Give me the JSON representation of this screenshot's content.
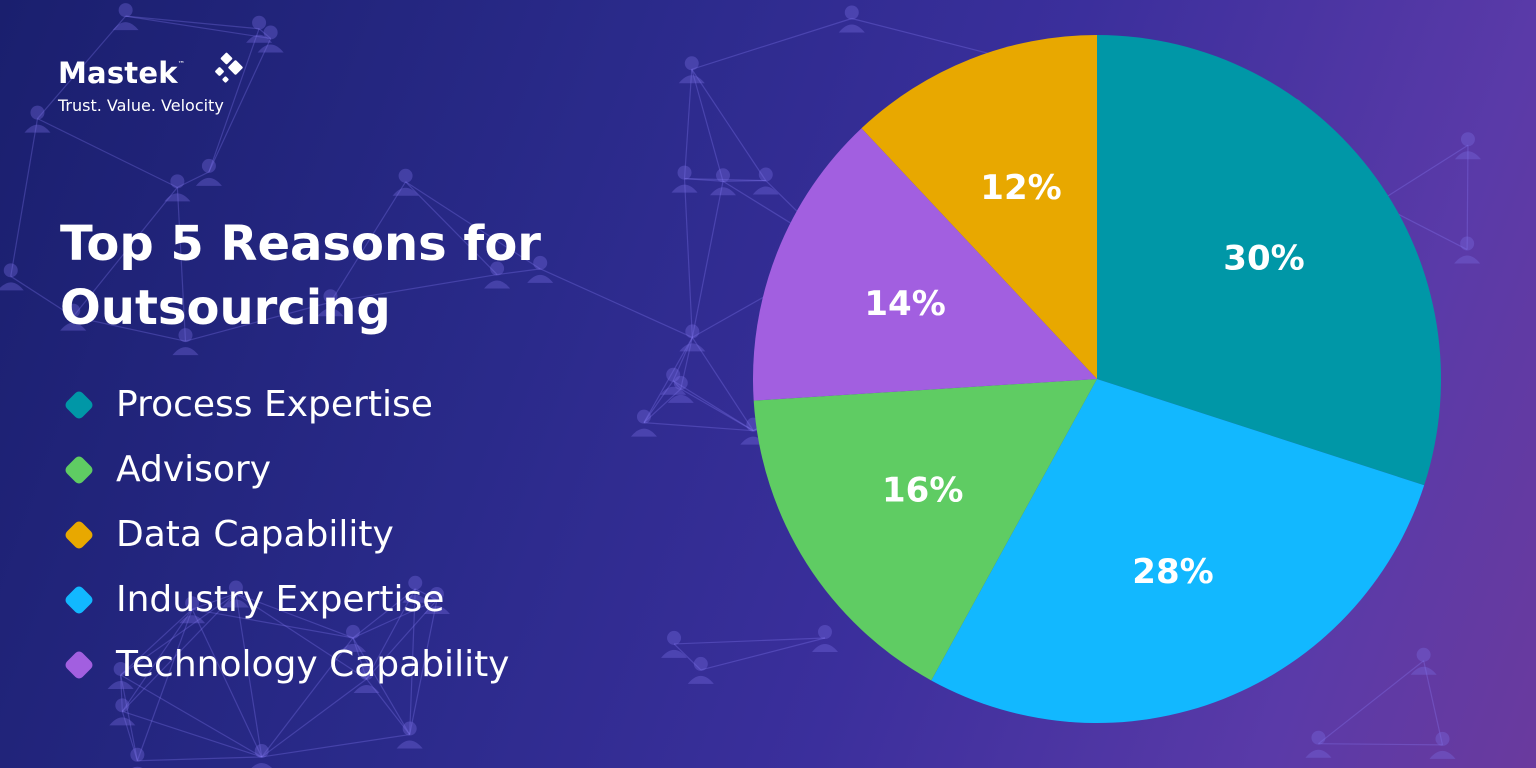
{
  "brand": {
    "name": "Mastek",
    "trademark": "™",
    "tagline": "Trust. Value. Velocity",
    "logo_icon": "diamond-cluster-icon"
  },
  "chart_data": {
    "type": "pie",
    "title": "Top 5 Reasons for Outsourcing",
    "categories": [
      "Process Expertise",
      "Advisory",
      "Data Capability",
      "Industry Expertise",
      "Technology Capability"
    ],
    "values": [
      30,
      16,
      12,
      28,
      14
    ],
    "value_labels": [
      "30%",
      "16%",
      "12%",
      "28%",
      "14%"
    ],
    "colors": [
      "#0097a7",
      "#5fcc63",
      "#e8a800",
      "#12b8ff",
      "#a25fe0"
    ],
    "slice_order": [
      "Process Expertise",
      "Industry Expertise",
      "Advisory",
      "Technology Capability",
      "Data Capability"
    ],
    "start_angle": "12 o'clock",
    "direction": "clockwise",
    "legend_position": "left"
  }
}
